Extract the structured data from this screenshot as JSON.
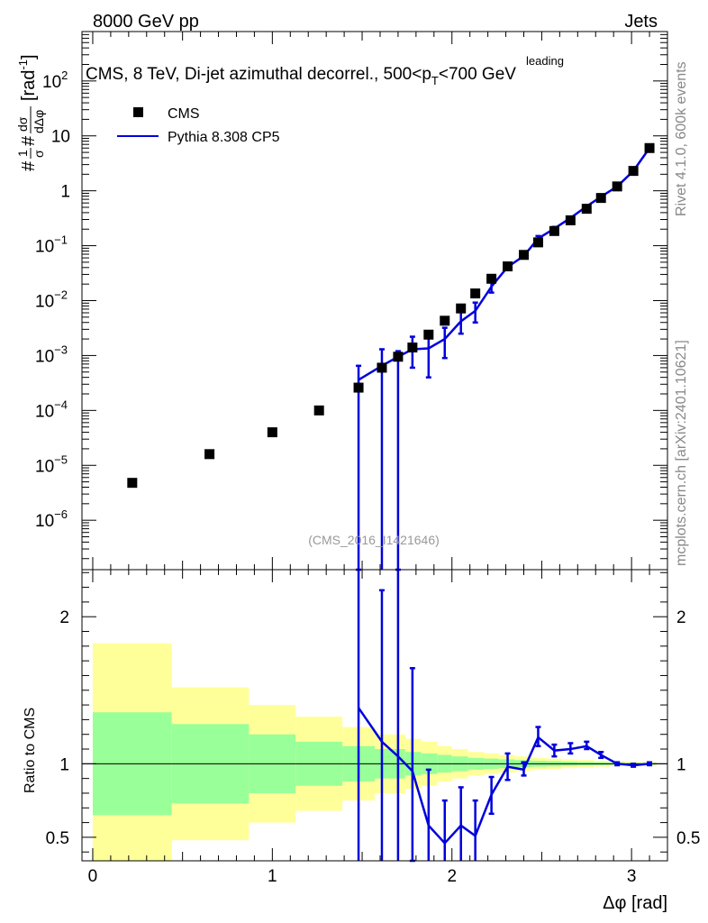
{
  "header": {
    "left": "8000 GeV pp",
    "right": "Jets"
  },
  "side_labels": {
    "rivet": "Rivet 4.1.0,  600k events",
    "mcplots": "mcplots.cern.ch [arXiv:2401.10621]"
  },
  "watermark": "(CMS_2016_I1421646)",
  "chart_data": {
    "type": "line",
    "title_main": "CMS, 8 TeV, Di-jet azimuthal decorrel., 500<p",
    "title_sup": "leading",
    "title_sub": "T",
    "title_tail": "<700 GeV",
    "ylabel_upper": "#1/σ d#σ/dΔφ [rad⁻¹]",
    "ylabel_units": "[rad",
    "ylabel_units_sup": "-1",
    "ylabel_units_close": "]",
    "ylabel_lower": "Ratio to CMS",
    "xlabel": "Δφ [rad]",
    "xlim": [
      -0.06,
      3.2
    ],
    "ylim_upper_log10": [
      -6.9,
      2.9
    ],
    "ylim_lower": [
      0.34,
      2.32
    ],
    "x_ticks": [
      "0",
      "1",
      "2",
      "3"
    ],
    "y_ticks_upper": [
      {
        "base": "10",
        "exp": "2",
        "v": 2
      },
      {
        "base": "10",
        "exp": "",
        "v": 1
      },
      {
        "base": "1",
        "exp": "",
        "v": 0
      },
      {
        "base": "10",
        "exp": "−1",
        "v": -1
      },
      {
        "base": "10",
        "exp": "−2",
        "v": -2
      },
      {
        "base": "10",
        "exp": "−3",
        "v": -3
      },
      {
        "base": "10",
        "exp": "−4",
        "v": -4
      },
      {
        "base": "10",
        "exp": "−5",
        "v": -5
      },
      {
        "base": "10",
        "exp": "−6",
        "v": -6
      }
    ],
    "y_ticks_lower": [
      "0.5",
      "1",
      "2"
    ],
    "legend": [
      {
        "name": "CMS",
        "color": "#000000",
        "marker": "square"
      },
      {
        "name": "Pythia 8.308 CP5",
        "color": "#0000dd",
        "marker": "line"
      }
    ],
    "cms": {
      "x": [
        0.22,
        0.65,
        1.0,
        1.26,
        1.48,
        1.61,
        1.7,
        1.78,
        1.87,
        1.96,
        2.05,
        2.13,
        2.22,
        2.31,
        2.4,
        2.48,
        2.57,
        2.66,
        2.75,
        2.83,
        2.92,
        3.01,
        3.1
      ],
      "values": [
        4.8e-06,
        1.6e-05,
        4e-05,
        0.0001,
        0.00026,
        0.0006,
        0.00095,
        0.0014,
        0.0024,
        0.0043,
        0.0072,
        0.0135,
        0.025,
        0.042,
        0.068,
        0.115,
        0.185,
        0.29,
        0.47,
        0.74,
        1.2,
        2.3,
        6.0
      ]
    },
    "pythia": {
      "x": [
        1.48,
        1.61,
        1.7,
        1.78,
        1.87,
        1.96,
        2.05,
        2.13,
        2.22,
        2.31,
        2.4,
        2.48,
        2.57,
        2.66,
        2.75,
        2.83,
        2.92,
        3.01,
        3.1
      ],
      "values": [
        0.00036,
        0.00065,
        0.00095,
        0.0013,
        0.00135,
        0.002,
        0.0042,
        0.0065,
        0.018,
        0.041,
        0.065,
        0.135,
        0.205,
        0.32,
        0.52,
        0.78,
        1.2,
        2.3,
        6.0
      ],
      "err_low": [
        0.0,
        0.0,
        0.0,
        0.0006,
        0.0004,
        0.0009,
        0.0025,
        0.004,
        0.014,
        0.036,
        0.059,
        0.12,
        0.19,
        0.3,
        0.49,
        0.76,
        1.18,
        2.25,
        5.9
      ],
      "err_high": [
        0.00065,
        0.0013,
        0.0012,
        0.0022,
        0.0023,
        0.0032,
        0.0062,
        0.0092,
        0.022,
        0.046,
        0.071,
        0.15,
        0.22,
        0.34,
        0.55,
        0.8,
        1.23,
        2.35,
        6.1
      ],
      "ratio": [
        1.38,
        1.15,
        1.05,
        0.95,
        0.58,
        0.46,
        0.58,
        0.51,
        0.79,
        0.98,
        0.96,
        1.18,
        1.09,
        1.1,
        1.12,
        1.06,
        1.0,
        0.99,
        1.0
      ],
      "ratio_err_low": [
        0.0,
        0.0,
        0.0,
        0.25,
        0.0,
        0.0,
        0.0,
        0.0,
        0.66,
        0.89,
        0.92,
        1.12,
        1.05,
        1.07,
        1.1,
        1.04,
        0.99,
        0.98,
        0.99
      ],
      "ratio_err_high": [
        2.4,
        2.18,
        2.4,
        1.65,
        0.96,
        0.75,
        0.84,
        0.75,
        0.91,
        1.07,
        1.01,
        1.25,
        1.13,
        1.14,
        1.15,
        1.08,
        1.01,
        1.0,
        1.01
      ]
    },
    "bands": {
      "edges": [
        0.0,
        0.44,
        0.87,
        1.13,
        1.39,
        1.57,
        1.74,
        1.83,
        1.92,
        2.0,
        2.09,
        2.18,
        2.26,
        2.35,
        2.44,
        2.53,
        2.61,
        2.7,
        2.79,
        2.88,
        2.96,
        3.05,
        3.14
      ],
      "inner_half": [
        0.35,
        0.27,
        0.2,
        0.15,
        0.12,
        0.1,
        0.08,
        0.07,
        0.06,
        0.05,
        0.04,
        0.035,
        0.03,
        0.025,
        0.02,
        0.018,
        0.015,
        0.012,
        0.01,
        0.008,
        0.007,
        0.006
      ],
      "outer_half": [
        0.82,
        0.52,
        0.4,
        0.32,
        0.25,
        0.2,
        0.17,
        0.15,
        0.12,
        0.1,
        0.08,
        0.07,
        0.06,
        0.05,
        0.04,
        0.035,
        0.03,
        0.025,
        0.02,
        0.016,
        0.013,
        0.01
      ],
      "inner_color": "#99ff99",
      "outer_color": "#ffff99"
    }
  }
}
